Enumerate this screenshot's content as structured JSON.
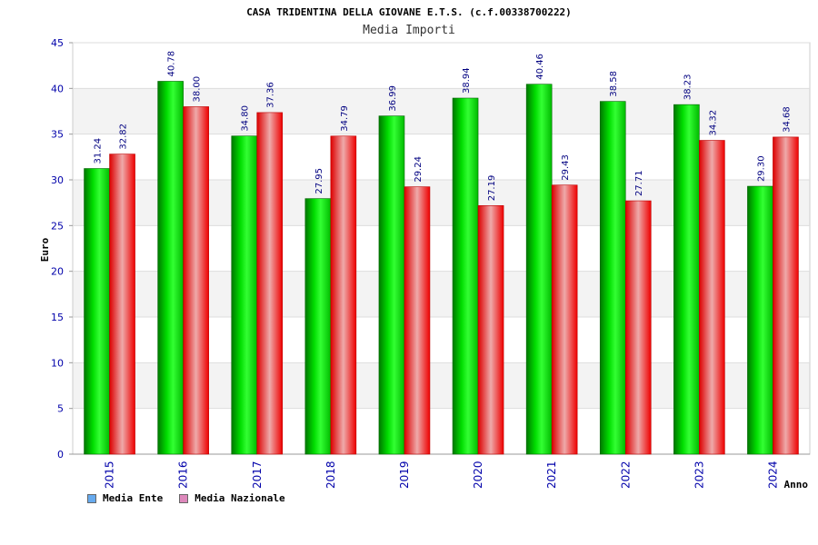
{
  "chart_data": {
    "type": "bar",
    "title": "CASA TRIDENTINA DELLA GIOVANE E.T.S. (c.f.00338700222)",
    "subtitle": "Media Importi",
    "xlabel": "Anno",
    "ylabel": "Euro",
    "ylim": [
      0,
      45
    ],
    "yticks": [
      "0",
      "5",
      "10",
      "15",
      "20",
      "25",
      "30",
      "35",
      "40",
      "45"
    ],
    "categories": [
      "2015",
      "2016",
      "2017",
      "2018",
      "2019",
      "2020",
      "2021",
      "2022",
      "2023",
      "2024"
    ],
    "series": [
      {
        "name": "Media Ente",
        "values": [
          31.24,
          40.78,
          34.8,
          27.95,
          36.99,
          38.94,
          40.46,
          38.58,
          38.23,
          29.3
        ],
        "labels": [
          "31.24",
          "40.78",
          "34.80",
          "27.95",
          "36.99",
          "38.94",
          "40.46",
          "38.58",
          "38.23",
          "29.30"
        ],
        "color": "#00cc00",
        "legend_color": "#66aaee"
      },
      {
        "name": "Media Nazionale",
        "values": [
          32.82,
          38.0,
          37.36,
          34.79,
          29.24,
          27.19,
          29.43,
          27.71,
          34.32,
          34.68
        ],
        "labels": [
          "32.82",
          "38.00",
          "37.36",
          "34.79",
          "29.24",
          "27.19",
          "29.43",
          "27.71",
          "34.32",
          "34.68"
        ],
        "color": "#ee0000",
        "legend_color": "#dd88bb"
      }
    ],
    "grid": true,
    "legend_position": "bottom-left"
  }
}
